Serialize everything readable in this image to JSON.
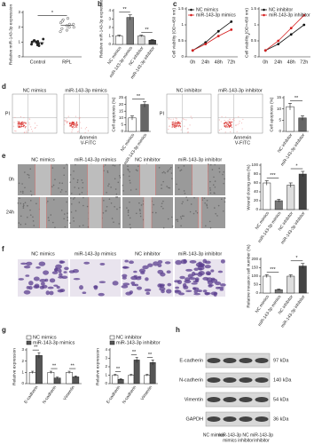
{
  "panel_labels": [
    "a",
    "b",
    "c",
    "d",
    "e",
    "f",
    "g",
    "h"
  ],
  "chart_data": [
    {
      "type": "strip",
      "y_label": "Relative miR-143-3p expression",
      "categories": [
        "Control",
        "RPL"
      ],
      "values": [
        [
          0.8,
          0.9,
          1.0,
          1.1,
          0.95,
          1.05,
          0.85,
          1.2,
          0.75,
          1.0,
          1.1,
          0.9
        ],
        [
          2.0,
          2.3,
          1.8,
          2.5,
          2.2,
          1.9,
          2.6,
          2.1,
          2.4,
          1.7,
          2.2,
          2.0
        ]
      ],
      "ylim": [
        0,
        3
      ],
      "yticks": [
        0,
        1,
        2,
        3
      ],
      "annotations": [
        "*"
      ]
    },
    {
      "type": "bar",
      "y_label": "Relative miR-143-3p expression",
      "categories": [
        "NC mimics",
        "miR-143-3p mimics",
        "NC inhibitor",
        "miR-143-3p inhibitor"
      ],
      "values": [
        1,
        3.2,
        1,
        0.5
      ],
      "errors": [
        0.1,
        0.3,
        0.1,
        0.08
      ],
      "colors": [
        "#ffffff",
        "#777777",
        "#dddddd",
        "#444444"
      ],
      "ylim": [
        0,
        4
      ],
      "yticks": [
        0,
        1,
        2,
        3,
        4
      ],
      "annotations": [
        "**",
        "**"
      ]
    },
    {
      "type": "line",
      "y_label": "Cell viability (OD=450 nm)",
      "categories": [
        "0h",
        "24h",
        "48h",
        "72h"
      ],
      "series": [
        {
          "name": "NC mimics",
          "color": "#111111",
          "values": [
            0.2,
            0.45,
            0.8,
            1.1
          ]
        },
        {
          "name": "miR-143-3p mimics",
          "color": "#d62020",
          "values": [
            0.2,
            0.4,
            0.65,
            0.85
          ]
        }
      ],
      "ylim": [
        0,
        1.5
      ],
      "yticks": [
        0,
        0.5,
        1,
        1.5
      ],
      "annotations": [
        "*"
      ]
    },
    {
      "type": "line",
      "y_label": "Cell viability (OD=450 nm)",
      "categories": [
        "0h",
        "24h",
        "48h",
        "72h"
      ],
      "series": [
        {
          "name": "NC inhibitor",
          "color": "#111111",
          "values": [
            0.2,
            0.4,
            0.7,
            1.0
          ]
        },
        {
          "name": "miR-143-3p inhibitor",
          "color": "#d62020",
          "values": [
            0.2,
            0.5,
            0.9,
            1.3
          ]
        }
      ],
      "ylim": [
        0,
        1.5
      ],
      "yticks": [
        0,
        0.5,
        1,
        1.5
      ]
    },
    {
      "type": "bar",
      "y_label": "Cell apoptosis (%)",
      "categories": [
        "NC mimics",
        "miR-143-3p mimics"
      ],
      "values": [
        10,
        20
      ],
      "errors": [
        1.5,
        2
      ],
      "colors": [
        "#ffffff",
        "#666666"
      ],
      "ylim": [
        0,
        25
      ],
      "yticks": [
        0,
        5,
        10,
        15,
        20,
        25
      ],
      "annotations": [
        "**"
      ]
    },
    {
      "type": "bar",
      "y_label": "Cell apoptosis (%)",
      "categories": [
        "NC inhibitor",
        "miR-143-3p inhibitor"
      ],
      "values": [
        11,
        6
      ],
      "errors": [
        1.5,
        1
      ],
      "colors": [
        "#ffffff",
        "#666666"
      ],
      "ylim": [
        0,
        15
      ],
      "yticks": [
        0,
        5,
        10,
        15
      ],
      "annotations": [
        "**"
      ]
    },
    {
      "type": "bar",
      "y_label": "Wound closing area (%)",
      "categories": [
        "NC mimics",
        "miR-143-3p mimics",
        "NC inhibitor",
        "miR-143-3p inhibitor"
      ],
      "values": [
        60,
        20,
        55,
        80
      ],
      "errors": [
        5,
        3,
        5,
        6
      ],
      "colors": [
        "#ffffff",
        "#777777",
        "#dddddd",
        "#444444"
      ],
      "ylim": [
        0,
        100
      ],
      "yticks": [
        0,
        20,
        40,
        60,
        80,
        100
      ],
      "annotations": [
        "***",
        "*"
      ]
    },
    {
      "type": "bar",
      "y_label": "Relative invasion cell number (%)",
      "categories": [
        "NC mimics",
        "miR-143-3p mimics",
        "NC inhibitor",
        "miR-143-3p inhibitor"
      ],
      "values": [
        100,
        20,
        100,
        160
      ],
      "errors": [
        8,
        4,
        8,
        15
      ],
      "colors": [
        "#ffffff",
        "#777777",
        "#dddddd",
        "#444444"
      ],
      "ylim": [
        0,
        200
      ],
      "yticks": [
        0,
        50,
        100,
        150,
        200
      ],
      "annotations": [
        "***",
        "*"
      ]
    },
    {
      "type": "grouped_bar",
      "y_label": "Relative expression",
      "categories": [
        "E-cadherin",
        "N-cadherin",
        "Vimentin"
      ],
      "series": [
        {
          "name": "NC mimics",
          "color": "#ffffff",
          "values": [
            1,
            1,
            1
          ],
          "errors": [
            0.1,
            0.1,
            0.1
          ]
        },
        {
          "name": "miR-143-3p mimics",
          "color": "#555555",
          "values": [
            2.5,
            0.5,
            0.6
          ],
          "errors": [
            0.25,
            0.08,
            0.08
          ]
        }
      ],
      "ylim": [
        0,
        3
      ],
      "yticks": [
        0,
        1,
        2,
        3
      ],
      "annotations": [
        "**",
        "**",
        "**"
      ]
    },
    {
      "type": "grouped_bar",
      "y_label": "Relative expression",
      "categories": [
        "E-cadherin",
        "N-cadherin",
        "Vimentin"
      ],
      "series": [
        {
          "name": "NC inhibitor",
          "color": "#ffffff",
          "values": [
            1,
            1,
            1
          ],
          "errors": [
            0.1,
            0.1,
            0.1
          ]
        },
        {
          "name": "miR-143-3p inhibitor",
          "color": "#555555",
          "values": [
            0.5,
            2.8,
            2.5
          ],
          "errors": [
            0.08,
            0.3,
            0.3
          ]
        }
      ],
      "ylim": [
        0,
        4
      ],
      "yticks": [
        0,
        1,
        2,
        3,
        4
      ],
      "annotations": [
        "**",
        "**",
        "**"
      ]
    }
  ],
  "flow": {
    "labels": [
      "NC mimics",
      "miR-143-3p mimics",
      "NC inhibitor",
      "miR-143-3p inhibitor"
    ],
    "y_axis": "PI",
    "x_axis": [
      "Annexin",
      "V-FITC"
    ]
  },
  "wound": {
    "columns": [
      "NC mimics",
      "miR-143-3p mimics",
      "NC inhibitor",
      "miR-143-3p inhibitor"
    ],
    "rows": [
      "0h",
      "24h"
    ]
  },
  "transwell": {
    "columns": [
      "NC mimics",
      "miR-143-3p mimics",
      "NC inhibitor",
      "miR-143-3p inhibitor"
    ]
  },
  "western": {
    "proteins": [
      "E-cadherin",
      "N-cadherin",
      "Vimentin",
      "GAPDH"
    ],
    "sizes": [
      "97 kDa",
      "140 kDa",
      "54 kDa",
      "36 kDa"
    ],
    "lanes": [
      [
        "NC mimics"
      ],
      [
        "miR-143-3p",
        "mimics"
      ],
      [
        "NC",
        "inhibitor"
      ],
      [
        "miR-143-3p",
        "inhibitor"
      ]
    ]
  }
}
